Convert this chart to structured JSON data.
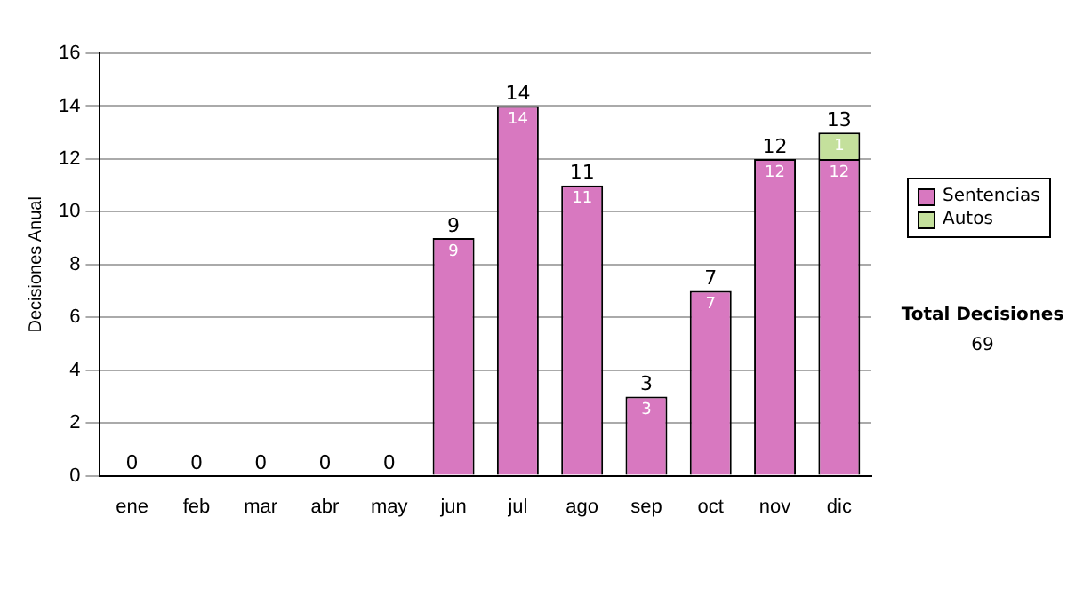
{
  "chart_data": {
    "type": "bar",
    "stacked": true,
    "ylabel": "Decisiones Anual",
    "categories": [
      "ene",
      "feb",
      "mar",
      "abr",
      "may",
      "jun",
      "jul",
      "ago",
      "sep",
      "oct",
      "nov",
      "dic"
    ],
    "series": [
      {
        "name": "Sentencias",
        "color": "#d878c0",
        "values": [
          0,
          0,
          0,
          0,
          0,
          9,
          14,
          11,
          3,
          7,
          12,
          12
        ],
        "value_labels": [
          null,
          null,
          null,
          null,
          null,
          "9",
          "14",
          "11",
          "3",
          "7",
          "12",
          "12"
        ]
      },
      {
        "name": "Autos",
        "color": "#c4e09c",
        "values": [
          0,
          0,
          0,
          0,
          0,
          0,
          0,
          0,
          0,
          0,
          0,
          1
        ],
        "value_labels": [
          null,
          null,
          null,
          null,
          null,
          null,
          null,
          null,
          null,
          null,
          null,
          "1"
        ]
      }
    ],
    "totals": [
      "0",
      "0",
      "0",
      "0",
      "0",
      "9",
      "14",
      "11",
      "3",
      "7",
      "12",
      "13"
    ],
    "ylim": [
      0,
      16
    ],
    "yticks": [
      0,
      2,
      4,
      6,
      8,
      10,
      12,
      14,
      16
    ],
    "grid": "y",
    "legend": "right",
    "annotations": [
      "Total Decisiones",
      "69"
    ]
  }
}
